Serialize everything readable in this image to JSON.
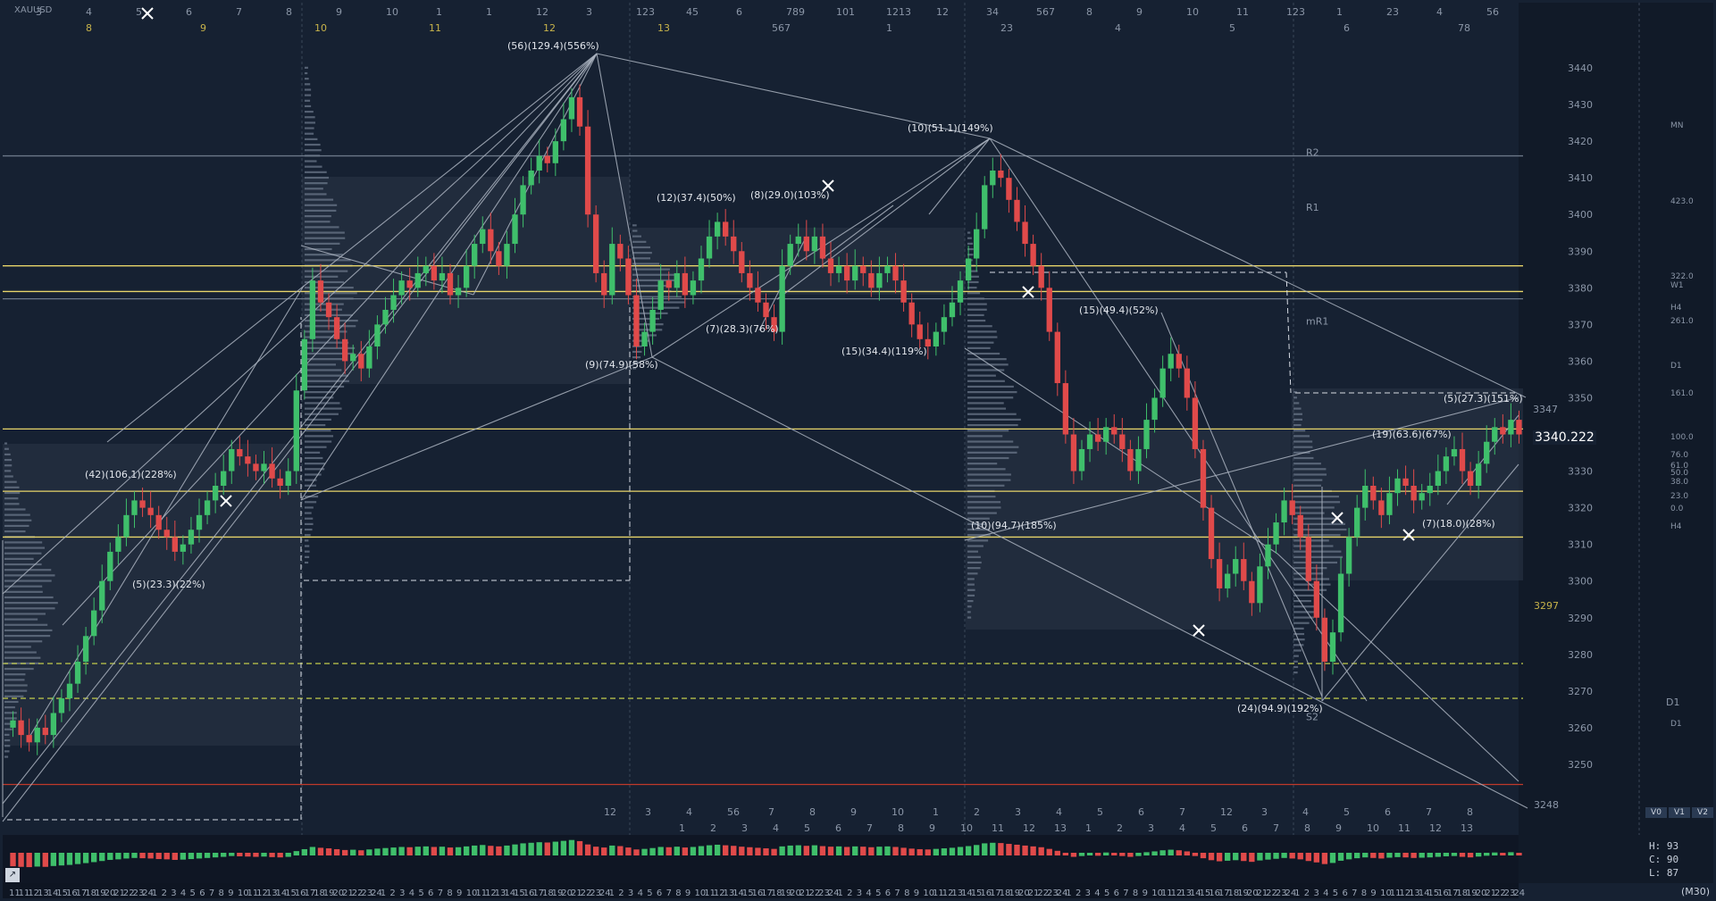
{
  "window": {
    "symbol": "XAUUSD",
    "timeframe": "(M30)"
  },
  "last_price": "3340.222",
  "stats": {
    "h": "H: 93",
    "c": "C: 90",
    "l": "L: 87"
  },
  "volume_buttons": [
    "V0",
    "V1",
    "V2"
  ],
  "chart_data": {
    "type": "candlestick",
    "y_axis": {
      "range": [
        3240,
        3450
      ],
      "ticks": [
        3250,
        3260,
        3270,
        3280,
        3290,
        3300,
        3310,
        3320,
        3330,
        3340,
        3350,
        3360,
        3370,
        3380,
        3390,
        3400,
        3410,
        3420,
        3430,
        3440
      ]
    },
    "x_axis": {
      "labels": [
        "11",
        "11",
        "12",
        "13",
        "14",
        "15",
        "16",
        "17",
        "18",
        "19",
        "20",
        "21",
        "22",
        "23",
        "24",
        "1",
        "2",
        "3",
        "4",
        "5",
        "6",
        "7",
        "8",
        "9",
        "10",
        "11",
        "12",
        "13",
        "14",
        "15",
        "16",
        "17",
        "18",
        "19",
        "20",
        "21",
        "22",
        "23",
        "24",
        "1",
        "2",
        "3",
        "4",
        "5",
        "6",
        "7",
        "8",
        "9",
        "10",
        "11",
        "12",
        "13",
        "14",
        "15",
        "16",
        "17",
        "18",
        "19",
        "20",
        "21",
        "22",
        "23",
        "24",
        "1",
        "2",
        "3",
        "4",
        "5",
        "6",
        "7",
        "8",
        "9",
        "10",
        "11",
        "12",
        "13",
        "14",
        "15",
        "16",
        "17",
        "18",
        "19",
        "20",
        "21",
        "22",
        "23",
        "24",
        "1",
        "2",
        "3",
        "4",
        "5",
        "6",
        "7",
        "8",
        "9",
        "10",
        "11",
        "12",
        "13",
        "14",
        "15",
        "16",
        "17",
        "18",
        "19",
        "20",
        "21",
        "22",
        "23",
        "24",
        "1",
        "2",
        "3",
        "4",
        "5",
        "6",
        "7",
        "8",
        "9",
        "10",
        "11",
        "12",
        "13",
        "14",
        "15",
        "16",
        "17",
        "18",
        "19",
        "20",
        "21",
        "22",
        "23",
        "24",
        "1",
        "2",
        "3",
        "4",
        "5",
        "6",
        "7",
        "8",
        "9",
        "10",
        "11",
        "12",
        "13",
        "14",
        "15",
        "16",
        "17",
        "18",
        "19",
        "20",
        "21",
        "22",
        "23",
        "24"
      ]
    },
    "close": [
      3262,
      3258,
      3256,
      3260,
      3258,
      3264,
      3268,
      3272,
      3278,
      3285,
      3292,
      3300,
      3308,
      3312,
      3318,
      3322,
      3320,
      3318,
      3314,
      3312,
      3308,
      3310,
      3314,
      3318,
      3322,
      3326,
      3330,
      3336,
      3334,
      3332,
      3330,
      3332,
      3328,
      3326,
      3330,
      3352,
      3366,
      3382,
      3376,
      3372,
      3366,
      3360,
      3362,
      3358,
      3364,
      3370,
      3374,
      3378,
      3382,
      3380,
      3384,
      3386,
      3382,
      3384,
      3378,
      3380,
      3386,
      3392,
      3396,
      3390,
      3386,
      3392,
      3400,
      3408,
      3412,
      3416,
      3414,
      3420,
      3426,
      3432,
      3424,
      3400,
      3384,
      3378,
      3392,
      3388,
      3378,
      3364,
      3368,
      3374,
      3382,
      3380,
      3384,
      3378,
      3382,
      3388,
      3394,
      3398,
      3394,
      3390,
      3384,
      3380,
      3376,
      3372,
      3368,
      3386,
      3392,
      3394,
      3390,
      3394,
      3388,
      3384,
      3386,
      3382,
      3386,
      3384,
      3380,
      3384,
      3386,
      3382,
      3376,
      3370,
      3366,
      3364,
      3368,
      3372,
      3376,
      3382,
      3388,
      3396,
      3408,
      3412,
      3410,
      3404,
      3398,
      3392,
      3386,
      3380,
      3368,
      3354,
      3340,
      3330,
      3336,
      3340,
      3338,
      3342,
      3340,
      3336,
      3330,
      3336,
      3344,
      3350,
      3358,
      3362,
      3358,
      3350,
      3336,
      3320,
      3306,
      3298,
      3302,
      3306,
      3300,
      3294,
      3304,
      3310,
      3316,
      3322,
      3318,
      3312,
      3300,
      3290,
      3278,
      3286,
      3302,
      3312,
      3320,
      3326,
      3322,
      3318,
      3324,
      3328,
      3326,
      3322,
      3324,
      3326,
      3330,
      3334,
      3336,
      3330,
      3326,
      3332,
      3338,
      3342,
      3340,
      3344,
      3340
    ],
    "horizontal_levels": [
      {
        "price": 3386,
        "color": "#e8d56a"
      },
      {
        "price": 3379,
        "color": "#e8d56a"
      },
      {
        "price": 3341.5,
        "color": "#e8d56a"
      },
      {
        "price": 3324.5,
        "color": "#e8d56a"
      },
      {
        "price": 3312,
        "color": "#e8d56a"
      },
      {
        "price": 3277.5,
        "color": "#b4bd4a",
        "dashed": true
      },
      {
        "price": 3268,
        "color": "#b4bd4a",
        "dashed": true
      },
      {
        "price": 3416,
        "color": "#6b7788"
      },
      {
        "price": 3377,
        "color": "#6b7788"
      },
      {
        "price": 3244.5,
        "color": "#c0392b"
      }
    ],
    "pivot_labels": [
      {
        "text": "R2",
        "price": 3417
      },
      {
        "text": "R1",
        "price": 3402
      },
      {
        "text": "mR1",
        "price": 3371
      },
      {
        "text": "S2",
        "price": 3263
      },
      {
        "text": "D1",
        "price": 3267
      }
    ],
    "right_small_labels": [
      "MN",
      "423.0",
      "322.0",
      "W1",
      "H4",
      "261.0",
      "D1",
      "161.0",
      "100.0",
      "76.0",
      "61.0",
      "50.0",
      "38.0",
      "23.0",
      "0.0",
      "H4",
      "D1"
    ],
    "price_tags": [
      "3347",
      "3297",
      "3248"
    ],
    "annotations": [
      "(56)(129.4)(556%)",
      "(42)(106.1)(228%)",
      "(5)(23.3)(22%)",
      "(12)(37.4)(50%)",
      "(8)(29.0)(103%)",
      "(9)(74.9)(58%)",
      "(7)(28.3)(76%)",
      "(10)(51.1)(149%)",
      "(15)(34.4)(119%)",
      "(15)(49.4)(52%)",
      "(10)(94.7)(185%)",
      "(24)(94.9)(192%)",
      "(19)(63.6)(67%)",
      "(5)(27.3)(151%)",
      "(7)(18.0)(28%)"
    ],
    "top_counters_row1": [
      "3",
      "4",
      "5",
      "6",
      "7",
      "8",
      "9",
      "10",
      "1",
      "1",
      "12",
      "3",
      "123",
      "45",
      "6",
      "789",
      "101",
      "1213",
      "12",
      "34",
      "567",
      "8",
      "9",
      "10",
      "11",
      "123",
      "1",
      "23",
      "4",
      "56"
    ],
    "top_counters_row2": [
      "8",
      "9",
      "10",
      "11",
      "12",
      "13",
      "567",
      "1",
      "23",
      "4",
      "5",
      "6",
      "78"
    ],
    "bottom_counters_row1": [
      "12",
      "3",
      "4",
      "56",
      "7",
      "8",
      "9",
      "10",
      "1",
      "2",
      "3",
      "4",
      "5",
      "6",
      "7",
      "12",
      "3",
      "4",
      "5",
      "6",
      "7",
      "8"
    ],
    "bottom_counters_row2": [
      "1",
      "2",
      "3",
      "4",
      "5",
      "6",
      "7",
      "8",
      "9",
      "10",
      "11",
      "12",
      "13",
      "1",
      "2",
      "3",
      "4",
      "5",
      "6",
      "7",
      "8",
      "9",
      "10",
      "11",
      "12",
      "13"
    ]
  }
}
